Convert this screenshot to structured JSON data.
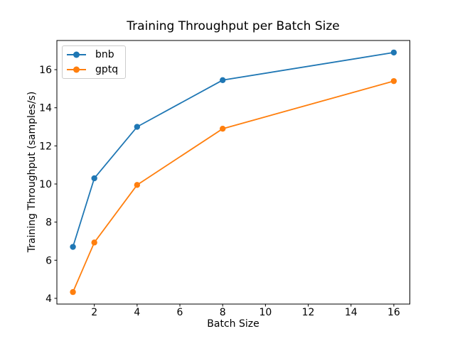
{
  "chart_data": {
    "type": "line",
    "title": "Training Throughput per Batch Size",
    "xlabel": "Batch Size",
    "ylabel": "Training Throughput (samples/s)",
    "x": [
      1,
      2,
      4,
      8,
      16
    ],
    "series": [
      {
        "name": "bnb",
        "color": "#1f77b4",
        "values": [
          6.7,
          10.3,
          13.0,
          15.45,
          16.9
        ]
      },
      {
        "name": "gptq",
        "color": "#ff7f0e",
        "values": [
          4.33,
          6.93,
          9.95,
          12.9,
          15.4
        ]
      }
    ],
    "xticks": [
      2,
      4,
      6,
      8,
      10,
      12,
      14,
      16
    ],
    "yticks": [
      4,
      6,
      8,
      10,
      12,
      14,
      16
    ],
    "xlim": [
      0.25,
      16.75
    ],
    "ylim": [
      3.7,
      17.53
    ],
    "grid": false,
    "marker": "o",
    "legend_position": "upper left"
  },
  "colors": {
    "background": "#ffffff",
    "axis": "#000000",
    "text": "#000000",
    "legend_border": "#cccccc"
  }
}
